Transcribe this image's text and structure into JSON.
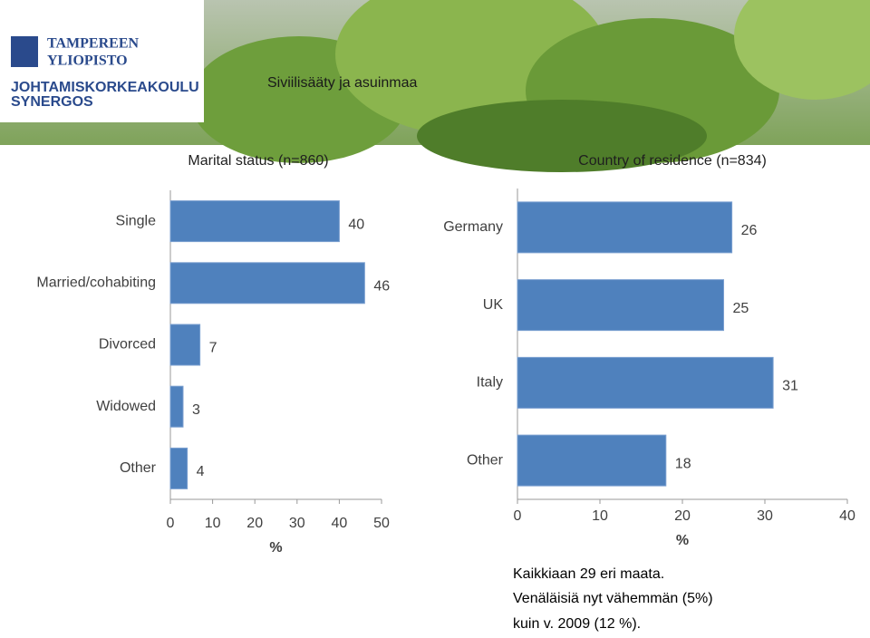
{
  "slide": {
    "title": "Siviilisääty ja asuinmaa",
    "logo": [
      "TAMPEREEN",
      "YLIOPISTO",
      "JOHTAMISKORKEAKOULU",
      "SYNERGOS"
    ],
    "notes": [
      "Kaikkiaan 29 eri maata.",
      "Venäläisiä nyt vähemmän (5%)",
      "kuin v. 2009 (12 %)."
    ]
  },
  "chart_data": [
    {
      "type": "bar",
      "title": "Marital status (n=860)",
      "xlabel": "%",
      "categories": [
        "Single",
        "Married/cohabiting",
        "Divorced",
        "Widowed",
        "Other"
      ],
      "values": [
        40,
        46,
        7,
        3,
        4
      ],
      "color": "#4f81bd",
      "xlim": [
        0,
        50
      ],
      "xticks": [
        0,
        10,
        20,
        30,
        40,
        50
      ]
    },
    {
      "type": "bar",
      "title": "Country of residence  (n=834)",
      "xlabel": "%",
      "categories": [
        "Germany",
        "UK",
        "Italy",
        "Other"
      ],
      "values": [
        26,
        25,
        31,
        18
      ],
      "color": "#4f81bd",
      "xlim": [
        0,
        40
      ],
      "xticks": [
        0,
        10,
        20,
        30,
        40
      ]
    }
  ]
}
